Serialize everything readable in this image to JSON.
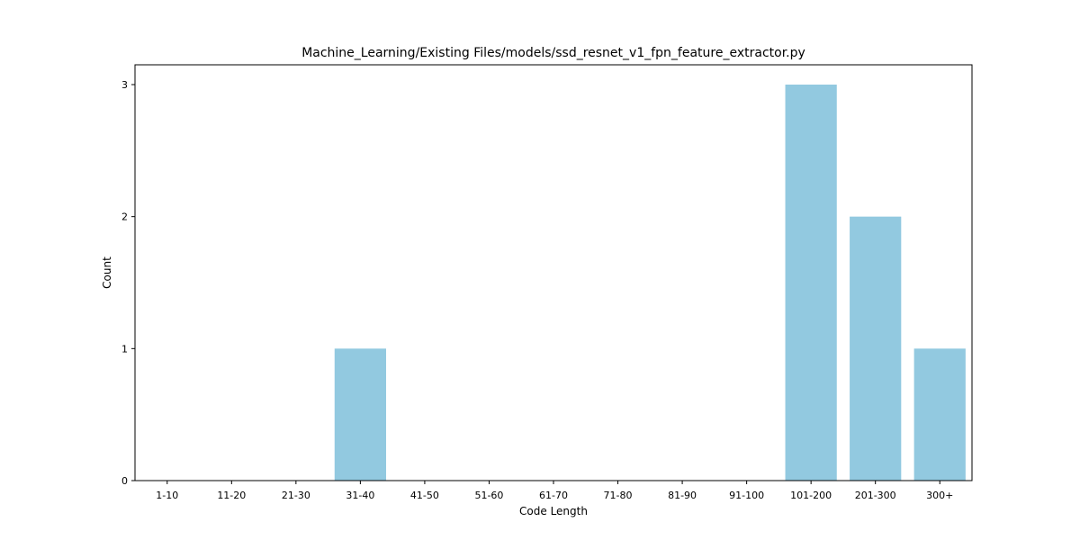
{
  "chart_data": {
    "type": "bar",
    "title": "Machine_Learning/Existing Files/models/ssd_resnet_v1_fpn_feature_extractor.py",
    "xlabel": "Code Length",
    "ylabel": "Count",
    "categories": [
      "1-10",
      "11-20",
      "21-30",
      "31-40",
      "41-50",
      "51-60",
      "61-70",
      "71-80",
      "81-90",
      "91-100",
      "101-200",
      "201-300",
      "300+"
    ],
    "values": [
      0,
      0,
      0,
      1,
      0,
      0,
      0,
      0,
      0,
      0,
      3,
      2,
      1
    ],
    "yticks": [
      0,
      1,
      2,
      3
    ],
    "ylim": [
      0,
      3.15
    ],
    "grid": false,
    "bar_color": "#92c9e0"
  }
}
